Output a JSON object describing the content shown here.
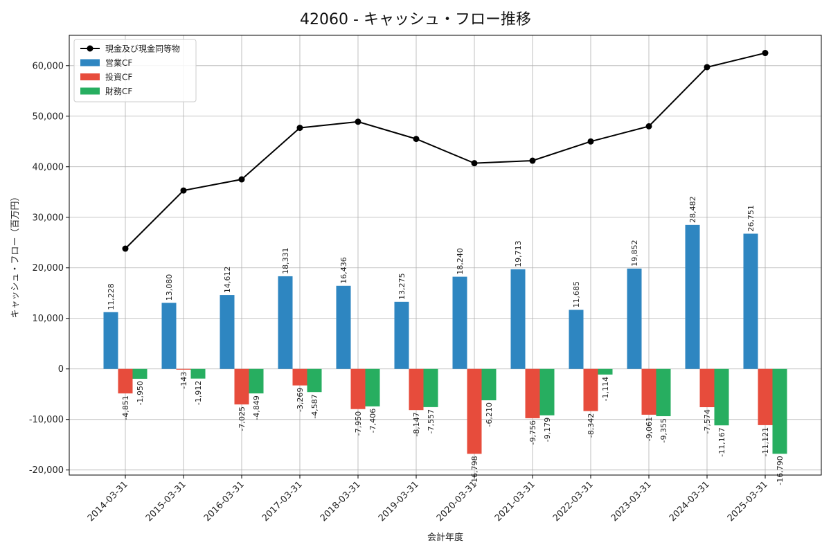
{
  "chart_data": {
    "type": "bar",
    "title": "42060 - キャッシュ・フロー推移",
    "xlabel": "会計年度",
    "ylabel": "キャッシュ・フロー（百万円）",
    "ylim": [
      -21000,
      66000
    ],
    "y_ticks": [
      -20000,
      -10000,
      0,
      10000,
      20000,
      30000,
      40000,
      50000,
      60000
    ],
    "y_tick_labels": [
      "-20,000",
      "-10,000",
      "0",
      "10,000",
      "20,000",
      "30,000",
      "40,000",
      "50,000",
      "60,000"
    ],
    "grid": true,
    "legend_position": "top-left",
    "categories": [
      "2014-03-31",
      "2015-03-31",
      "2016-03-31",
      "2017-03-31",
      "2018-03-31",
      "2019-03-31",
      "2020-03-31",
      "2021-03-31",
      "2022-03-31",
      "2023-03-31",
      "2024-03-31",
      "2025-03-31"
    ],
    "series": [
      {
        "name": "営業CF",
        "kind": "bar",
        "color": "#2e86c1",
        "values": [
          11228,
          13080,
          14612,
          18331,
          16436,
          13275,
          18240,
          19713,
          11685,
          19852,
          28482,
          26751
        ],
        "labels": [
          "11,228",
          "13,080",
          "14,612",
          "18,331",
          "16,436",
          "13,275",
          "18,240",
          "19,713",
          "11,685",
          "19,852",
          "28,482",
          "26,751"
        ]
      },
      {
        "name": "投資CF",
        "kind": "bar",
        "color": "#e74c3c",
        "values": [
          -4851,
          -143,
          -7025,
          -3269,
          -7950,
          -8147,
          -16798,
          -9756,
          -8342,
          -9061,
          -7574,
          -11121
        ],
        "labels": [
          "-4,851",
          "-143",
          "-7,025",
          "-3,269",
          "-7,950",
          "-8,147",
          "-16,798",
          "-9,756",
          "-8,342",
          "-9,061",
          "-7,574",
          "-11,121"
        ]
      },
      {
        "name": "財務CF",
        "kind": "bar",
        "color": "#27ae60",
        "values": [
          -1950,
          -1912,
          -4849,
          -4587,
          -7406,
          -7557,
          -6210,
          -9179,
          -1114,
          -9355,
          -11167,
          -16790
        ],
        "labels": [
          "-1,950",
          "-1,912",
          "-4,849",
          "-4,587",
          "-7,406",
          "-7,557",
          "-6,210",
          "-9,179",
          "-1,114",
          "-9,355",
          "-11,167",
          "-16,790"
        ]
      },
      {
        "name": "現金及び現金同等物",
        "kind": "line",
        "color": "#000000",
        "values": [
          23800,
          35300,
          37500,
          47700,
          48900,
          45500,
          40700,
          41200,
          45000,
          48000,
          59700,
          62500
        ]
      }
    ]
  }
}
